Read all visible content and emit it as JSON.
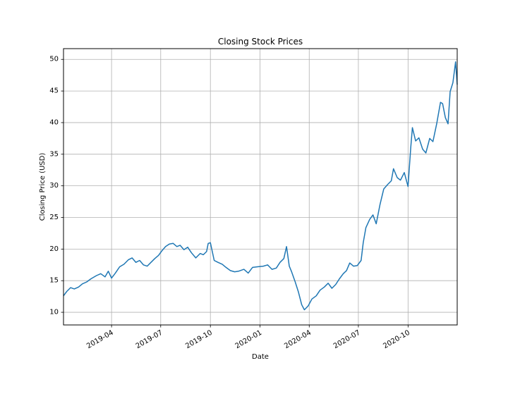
{
  "chart_data": {
    "type": "line",
    "title": "Closing Stock Prices",
    "xlabel": "Date",
    "ylabel": "Closing Price (USD)",
    "xlim": [
      "2019-01-02",
      "2020-12-31"
    ],
    "ylim": [
      8,
      51.7
    ],
    "grid": true,
    "line_color": "#1f77b4",
    "x_ticks": [
      "2019-04-01",
      "2019-07-01",
      "2019-10-01",
      "2020-01-01",
      "2020-04-01",
      "2020-07-01",
      "2020-10-01"
    ],
    "x_tick_labels": [
      "2019-04",
      "2019-07",
      "2019-10",
      "2020-01",
      "2020-04",
      "2020-07",
      "2020-10"
    ],
    "y_ticks": [
      10,
      15,
      20,
      25,
      30,
      35,
      40,
      45,
      50
    ],
    "y_tick_labels": [
      "10",
      "15",
      "20",
      "25",
      "30",
      "35",
      "40",
      "45",
      "50"
    ],
    "series": [
      {
        "x": [
          "2019-01-02",
          "2019-01-08",
          "2019-01-15",
          "2019-01-22",
          "2019-01-30",
          "2019-02-06",
          "2019-02-14",
          "2019-02-22",
          "2019-03-04",
          "2019-03-12",
          "2019-03-20",
          "2019-03-26",
          "2019-04-01",
          "2019-04-08",
          "2019-04-16",
          "2019-04-24",
          "2019-05-02",
          "2019-05-09",
          "2019-05-16",
          "2019-05-23",
          "2019-05-30",
          "2019-06-06",
          "2019-06-13",
          "2019-06-20",
          "2019-06-27",
          "2019-07-03",
          "2019-07-10",
          "2019-07-17",
          "2019-07-24",
          "2019-07-31",
          "2019-08-06",
          "2019-08-13",
          "2019-08-20",
          "2019-08-27",
          "2019-09-04",
          "2019-09-12",
          "2019-09-18",
          "2019-09-24",
          "2019-09-27",
          "2019-10-01",
          "2019-10-08",
          "2019-10-15",
          "2019-10-23",
          "2019-10-30",
          "2019-11-07",
          "2019-11-15",
          "2019-11-22",
          "2019-12-02",
          "2019-12-10",
          "2019-12-18",
          "2019-12-27",
          "2020-01-07",
          "2020-01-15",
          "2020-01-23",
          "2020-01-31",
          "2020-02-07",
          "2020-02-14",
          "2020-02-19",
          "2020-02-24",
          "2020-02-28",
          "2020-03-06",
          "2020-03-12",
          "2020-03-18",
          "2020-03-23",
          "2020-03-30",
          "2020-04-06",
          "2020-04-14",
          "2020-04-21",
          "2020-04-29",
          "2020-05-06",
          "2020-05-13",
          "2020-05-20",
          "2020-05-27",
          "2020-06-03",
          "2020-06-09",
          "2020-06-15",
          "2020-06-22",
          "2020-06-29",
          "2020-07-06",
          "2020-07-10",
          "2020-07-15",
          "2020-07-22",
          "2020-07-28",
          "2020-08-03",
          "2020-08-10",
          "2020-08-17",
          "2020-08-24",
          "2020-08-31",
          "2020-09-04",
          "2020-09-11",
          "2020-09-17",
          "2020-09-24",
          "2020-10-01",
          "2020-10-06",
          "2020-10-09",
          "2020-10-15",
          "2020-10-21",
          "2020-10-28",
          "2020-11-03",
          "2020-11-10",
          "2020-11-16",
          "2020-11-23",
          "2020-11-30",
          "2020-12-04",
          "2020-12-09",
          "2020-12-14",
          "2020-12-18",
          "2020-12-23",
          "2020-12-28",
          "2020-12-31"
        ],
        "y": [
          12.6,
          13.3,
          13.9,
          13.7,
          14.0,
          14.5,
          14.8,
          15.3,
          15.8,
          16.1,
          15.6,
          16.5,
          15.4,
          16.2,
          17.2,
          17.6,
          18.3,
          18.6,
          17.9,
          18.2,
          17.5,
          17.3,
          17.9,
          18.5,
          19.0,
          19.7,
          20.4,
          20.8,
          20.9,
          20.4,
          20.6,
          19.9,
          20.3,
          19.4,
          18.6,
          19.3,
          19.1,
          19.6,
          20.9,
          21.0,
          18.2,
          17.9,
          17.6,
          17.1,
          16.6,
          16.4,
          16.5,
          16.8,
          16.2,
          17.1,
          17.2,
          17.3,
          17.5,
          16.8,
          17.0,
          17.9,
          18.5,
          20.4,
          17.3,
          16.5,
          14.8,
          13.2,
          11.2,
          10.4,
          11.0,
          12.1,
          12.6,
          13.5,
          14.0,
          14.6,
          13.8,
          14.4,
          15.3,
          16.1,
          16.6,
          17.8,
          17.3,
          17.4,
          18.2,
          21.0,
          23.4,
          24.7,
          25.4,
          24.0,
          27.0,
          29.5,
          30.2,
          30.8,
          32.7,
          31.3,
          30.9,
          32.1,
          29.9,
          36.1,
          39.2,
          37.1,
          37.6,
          35.8,
          35.2,
          37.5,
          37.0,
          39.8,
          43.2,
          43.0,
          40.8,
          39.8,
          44.9,
          46.3,
          49.6,
          46.0
        ]
      }
    ]
  }
}
